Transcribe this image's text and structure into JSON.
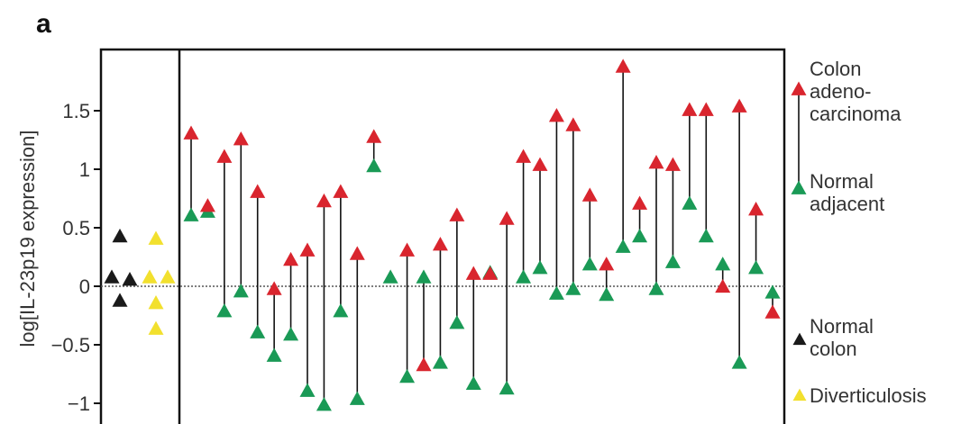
{
  "panel_label": "a",
  "chart_data": {
    "type": "scatter",
    "ylabel": "log[IL-23p19 expression]",
    "ylim": [
      -1.1,
      2.05
    ],
    "yticks": [
      -1,
      -0.5,
      0,
      0.5,
      1,
      1.5
    ],
    "ytick_labels": [
      "−1",
      "−0.5",
      "0",
      "0.5",
      "1",
      "1.5"
    ],
    "colors": {
      "tumor": "#d9252e",
      "normal_adjacent": "#1a9a56",
      "normal_colon": "#1a1a1a",
      "diverticulosis": "#f2e02e",
      "connector": "#111111"
    },
    "legend": {
      "tumor": "Colon adeno-carcinoma",
      "tumor_lines": [
        "Colon",
        "adeno-",
        "carcinoma"
      ],
      "normal_adjacent": "Normal adjacent",
      "normal_adjacent_lines": [
        "Normal",
        "adjacent"
      ],
      "normal_colon": "Normal colon",
      "normal_colon_lines": [
        "Normal",
        "colon"
      ],
      "diverticulosis": "Diverticulosis"
    },
    "normal_colon": [
      0.42,
      0.07,
      0.05,
      -0.13
    ],
    "diverticulosis": [
      0.4,
      0.07,
      -0.15,
      -0.37,
      0.07
    ],
    "paired_series": [
      {
        "name": "Colon adeno-carcinoma",
        "values": [
          1.3,
          0.68,
          1.1,
          1.25,
          0.8,
          -0.03,
          0.22,
          0.3,
          0.72,
          0.8,
          0.27,
          1.27,
          null,
          0.3,
          -0.68,
          0.35,
          0.6,
          0.1,
          0.1,
          0.57,
          1.1,
          1.03,
          1.45,
          1.37,
          0.77,
          0.18,
          1.87,
          0.7,
          1.05,
          1.03,
          1.5,
          1.5,
          -0.01,
          1.53,
          0.65,
          -0.23
        ]
      },
      {
        "name": "Normal adjacent",
        "values": [
          0.6,
          0.63,
          -0.22,
          -0.05,
          -0.4,
          -0.6,
          -0.42,
          -0.9,
          -1.02,
          -0.22,
          -0.97,
          1.02,
          0.07,
          -0.78,
          0.07,
          -0.66,
          -0.32,
          -0.84,
          0.11,
          -0.88,
          0.07,
          0.15,
          -0.07,
          -0.03,
          0.18,
          -0.08,
          0.33,
          0.42,
          -0.03,
          0.2,
          0.7,
          0.42,
          0.18,
          -0.66,
          0.15,
          -0.06
        ]
      }
    ]
  }
}
